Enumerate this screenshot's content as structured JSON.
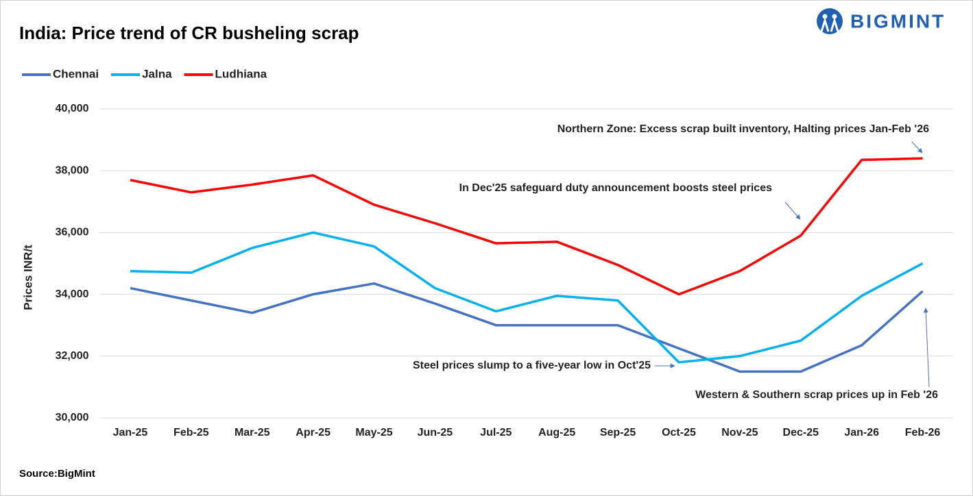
{
  "chart_data": {
    "type": "line",
    "title": "India: Price trend of CR busheling scrap",
    "brand": "BIGMINT",
    "source": "Source:BigMint",
    "y_label": "Prices INR/t",
    "categories": [
      "Jan-25",
      "Feb-25",
      "Mar-25",
      "Apr-25",
      "May-25",
      "Jun-25",
      "Jul-25",
      "Aug-25",
      "Sep-25",
      "Oct-25",
      "Nov-25",
      "Dec-25",
      "Jan-26",
      "Feb-26"
    ],
    "series": [
      {
        "name": "Chennai",
        "color": "#4472c4",
        "values": [
          34200,
          33800,
          33400,
          34000,
          34350,
          33700,
          33000,
          33000,
          33000,
          32250,
          31500,
          31500,
          32350,
          34100
        ]
      },
      {
        "name": "Jalna",
        "color": "#00b0f0",
        "values": [
          34750,
          34700,
          35500,
          36000,
          35550,
          34200,
          33450,
          33950,
          33800,
          31800,
          32000,
          32500,
          33950,
          35000
        ]
      },
      {
        "name": "Ludhiana",
        "color": "#ff0000",
        "values": [
          37700,
          37300,
          37550,
          37850,
          36900,
          36300,
          35650,
          35700,
          34950,
          34000,
          34750,
          35900,
          38350,
          38400
        ]
      }
    ],
    "ylim": [
      30000,
      40000
    ],
    "yticks": [
      {
        "value": 30000,
        "label": "30,000"
      },
      {
        "value": 32000,
        "label": "32,000"
      },
      {
        "value": 34000,
        "label": "34,000"
      },
      {
        "value": 36000,
        "label": "36,000"
      },
      {
        "value": 38000,
        "label": "38,000"
      },
      {
        "value": 40000,
        "label": "40,000"
      }
    ],
    "grid": true,
    "legend": "top-left",
    "annotations": [
      "Northern Zone: Excess scrap built inventory, Halting prices Jan-Feb '26",
      "In Dec'25 safeguard duty announcement boosts steel prices",
      "Steel prices slump to a five-year low in Oct'25",
      "Western & Southern scrap prices up in Feb '26"
    ]
  }
}
